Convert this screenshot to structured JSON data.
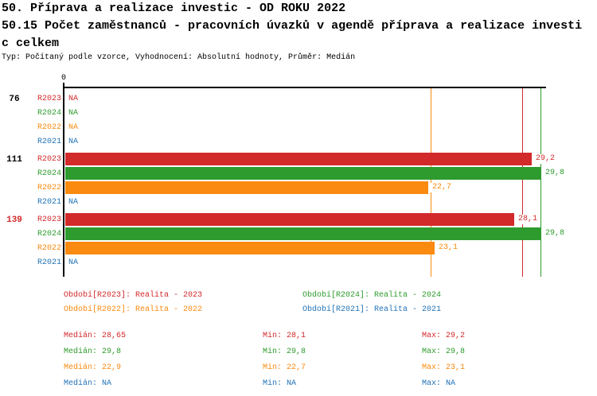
{
  "header": {
    "title_line1": "50. Příprava a realizace investic - OD ROKU 2022",
    "title_line2": "50.15 Počet zaměstnanců - pracovních úvazků v agendě příprava a realizace investi",
    "title_line3": "c celkem",
    "meta": "Typ: Počítaný podle vzorce, Vyhodnocení: Absolutní hodnoty, Průměr: Medián"
  },
  "na_text": "NA",
  "stats_labels": {
    "median": "Medián",
    "min": "Min",
    "max": "Max"
  },
  "chart_data": {
    "type": "bar",
    "orientation": "horizontal",
    "x_origin_label": "0",
    "xlim": [
      0,
      30.15
    ],
    "axis_color": "#000000",
    "series": [
      {
        "id": "R2023",
        "label": "R2023",
        "color": "#d2292a",
        "legend": "Období[R2023]: Realita - 2023",
        "median_line": 28.65,
        "stats": {
          "median": "28,65",
          "min": "28,1",
          "max": "29,2"
        }
      },
      {
        "id": "R2024",
        "label": "R2024",
        "color": "#2e9b2e",
        "legend": "Období[R2024]: Realita - 2024",
        "median_line": 29.8,
        "stats": {
          "median": "29,8",
          "min": "29,8",
          "max": "29,8"
        }
      },
      {
        "id": "R2022",
        "label": "R2022",
        "color": "#fa8a10",
        "legend": "Období[R2022]: Realita - 2022",
        "median_line": 22.9,
        "stats": {
          "median": "22,9",
          "min": "22,7",
          "max": "23,1"
        }
      },
      {
        "id": "R2021",
        "label": "R2021",
        "color": "#2273b6",
        "legend": "Období[R2021]: Realita - 2021",
        "median_line": null,
        "stats": {
          "median": "NA",
          "min": "NA",
          "max": "NA"
        }
      }
    ],
    "groups": [
      {
        "label": "76",
        "label_color": "#000000",
        "rows": [
          {
            "series": "R2023",
            "value": null,
            "display": "NA"
          },
          {
            "series": "R2024",
            "value": null,
            "display": "NA"
          },
          {
            "series": "R2022",
            "value": null,
            "display": "NA"
          },
          {
            "series": "R2021",
            "value": null,
            "display": "NA"
          }
        ]
      },
      {
        "label": "111",
        "label_color": "#000000",
        "rows": [
          {
            "series": "R2023",
            "value": 29.2,
            "display": "29,2"
          },
          {
            "series": "R2024",
            "value": 29.8,
            "display": "29,8"
          },
          {
            "series": "R2022",
            "value": 22.7,
            "display": "22,7"
          },
          {
            "series": "R2021",
            "value": null,
            "display": "NA"
          }
        ]
      },
      {
        "label": "139",
        "label_color": "#d2292a",
        "rows": [
          {
            "series": "R2023",
            "value": 28.1,
            "display": "28,1"
          },
          {
            "series": "R2024",
            "value": 29.8,
            "display": "29,8"
          },
          {
            "series": "R2022",
            "value": 23.1,
            "display": "23,1"
          },
          {
            "series": "R2021",
            "value": null,
            "display": "NA"
          }
        ]
      }
    ]
  }
}
